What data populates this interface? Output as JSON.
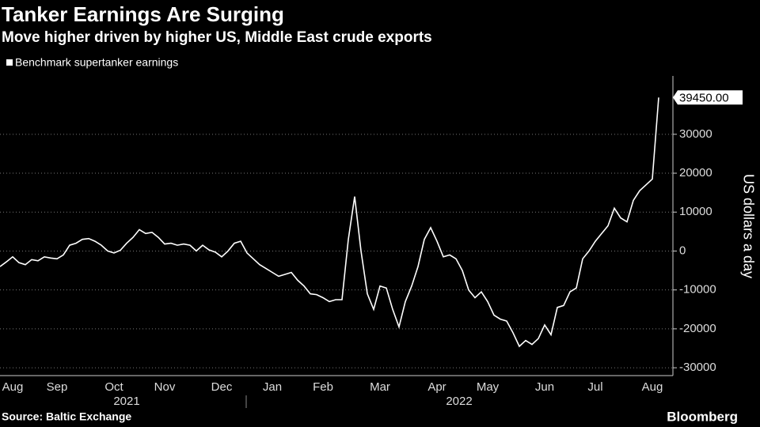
{
  "chart_data": {
    "type": "line",
    "title": "Tanker Earnings Are Surging",
    "subtitle": "Move higher driven by higher US, Middle East crude exports",
    "legend": "Benchmark supertanker earnings",
    "y_axis_label": "US dollars a day",
    "source": "Source: Baltic Exchange",
    "brand": "Bloomberg",
    "end_label": "39450.00",
    "color": "#ffffff",
    "year_labels": [
      "2021",
      "2022"
    ],
    "categories": [
      null,
      null,
      "Aug",
      null,
      null,
      null,
      null,
      null,
      null,
      "Sep",
      null,
      null,
      null,
      null,
      null,
      null,
      null,
      null,
      "Oct",
      null,
      null,
      null,
      null,
      null,
      null,
      null,
      "Nov",
      null,
      null,
      null,
      null,
      null,
      null,
      null,
      null,
      "Dec",
      null,
      null,
      null,
      null,
      null,
      null,
      null,
      "Jan",
      null,
      null,
      null,
      null,
      null,
      null,
      null,
      "Feb",
      null,
      null,
      null,
      null,
      null,
      null,
      null,
      null,
      "Mar",
      null,
      null,
      null,
      null,
      null,
      null,
      null,
      null,
      "Apr",
      null,
      null,
      null,
      null,
      null,
      null,
      null,
      "May",
      null,
      null,
      null,
      null,
      null,
      null,
      null,
      null,
      "Jun",
      null,
      null,
      null,
      null,
      null,
      null,
      null,
      "Jul",
      null,
      null,
      null,
      null,
      null,
      null,
      null,
      null,
      "Aug",
      null
    ],
    "values": [
      -4000,
      -2800,
      -1500,
      -3000,
      -3500,
      -2200,
      -2500,
      -1500,
      -1800,
      -2000,
      -1000,
      1500,
      2000,
      3000,
      3200,
      2500,
      1500,
      0,
      -500,
      200,
      2000,
      3500,
      5500,
      4500,
      4800,
      3500,
      1800,
      2000,
      1500,
      1800,
      1500,
      0,
      1500,
      300,
      -300,
      -1500,
      0,
      2000,
      2500,
      -500,
      -2000,
      -3500,
      -4500,
      -5500,
      -6500,
      -6000,
      -5500,
      -7500,
      -9000,
      -11000,
      -11200,
      -12000,
      -13000,
      -12500,
      -12500,
      3000,
      14000,
      0,
      -11000,
      -15000,
      -9000,
      -9500,
      -15000,
      -19500,
      -13000,
      -9000,
      -4000,
      3000,
      6000,
      2500,
      -1500,
      -1000,
      -2000,
      -5000,
      -10000,
      -12000,
      -10500,
      -13000,
      -16500,
      -17500,
      -18000,
      -21000,
      -24500,
      -23000,
      -24000,
      -22500,
      -19000,
      -21500,
      -14500,
      -14000,
      -10500,
      -9500,
      -2000,
      0,
      2500,
      4500,
      6500,
      11000,
      8500,
      7500,
      13000,
      15500,
      17000,
      18500,
      39450
    ],
    "ylim": [
      -31000,
      45000
    ],
    "yticks": [
      -30000,
      -20000,
      -10000,
      0,
      10000,
      20000,
      30000
    ],
    "grid": true
  }
}
